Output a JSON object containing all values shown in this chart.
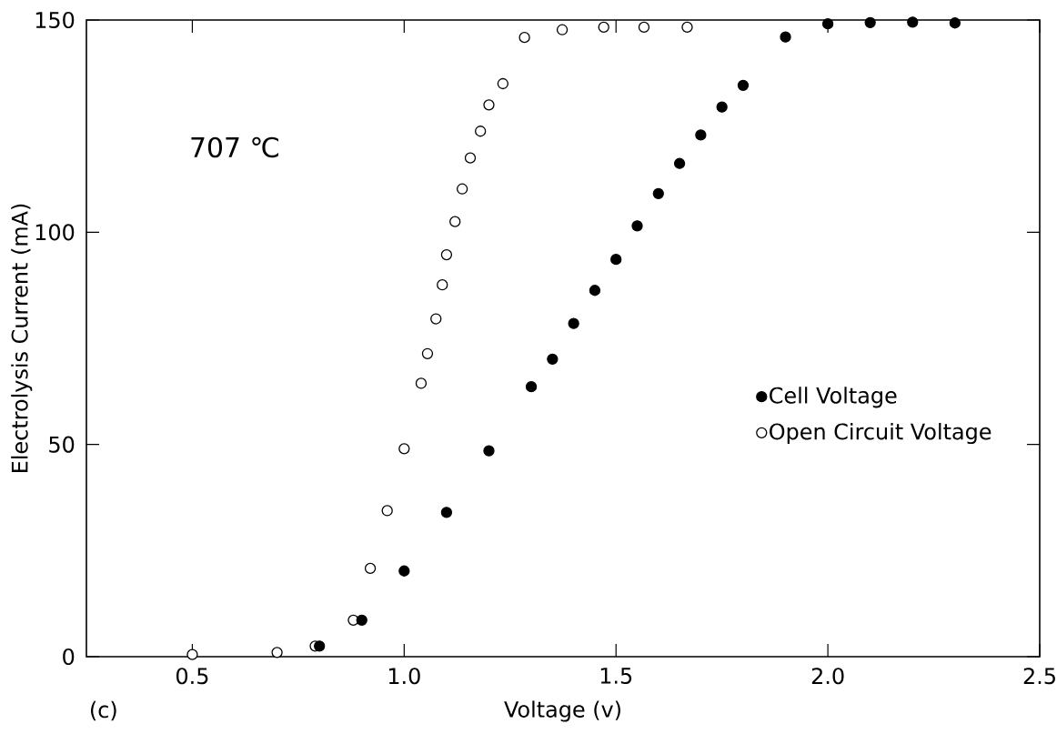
{
  "chart_data": {
    "type": "scatter",
    "xlabel": "Voltage (v)",
    "ylabel": "Electrolysis Current (mA)",
    "annotations": [
      "707 ℃",
      "(c)"
    ],
    "xlim": [
      0.25,
      2.5
    ],
    "ylim": [
      0,
      150
    ],
    "xticks": [
      0.5,
      {
        "value": 1.0,
        "label": "1.0"
      },
      1.5,
      {
        "value": 2.0,
        "label": "2.0"
      },
      2.5
    ],
    "yticks": [
      0,
      50,
      100,
      150
    ],
    "grid": false,
    "legend": "right",
    "marker": "circle",
    "series": [
      {
        "name": "Cell Voltage",
        "color": "#000000",
        "x": [
          0.8,
          0.9,
          1.0,
          1.1,
          1.2,
          1.3,
          1.35,
          1.4,
          1.45,
          1.5,
          1.55,
          1.6,
          1.65,
          1.7,
          1.75,
          1.8,
          1.9,
          2.0,
          2.1,
          2.2,
          2.3
        ],
        "values": [
          2.5,
          8.6,
          20.2,
          34,
          48.5,
          63.6,
          70.1,
          78.5,
          86.3,
          93.6,
          101.5,
          109.1,
          116.2,
          122.9,
          129.5,
          134.6,
          146,
          149.1,
          149.4,
          149.5,
          149.3
        ]
      },
      {
        "name": "Open Circuit Voltage",
        "color": "#ffffff",
        "x": [
          0.5,
          0.7,
          0.79,
          0.88,
          0.92,
          0.96,
          1.0,
          1.04,
          1.055,
          1.075,
          1.09,
          1.1,
          1.12,
          1.137,
          1.156,
          1.18,
          1.2,
          1.233,
          1.284,
          1.373,
          1.471,
          1.566,
          1.668
        ],
        "values": [
          0.5,
          1,
          2.5,
          8.6,
          20.8,
          34.4,
          49,
          64.4,
          71.4,
          79.6,
          87.6,
          94.7,
          102.5,
          110.2,
          117.5,
          123.8,
          130,
          135,
          145.9,
          147.7,
          148.3,
          148.3,
          148.3
        ]
      }
    ]
  }
}
